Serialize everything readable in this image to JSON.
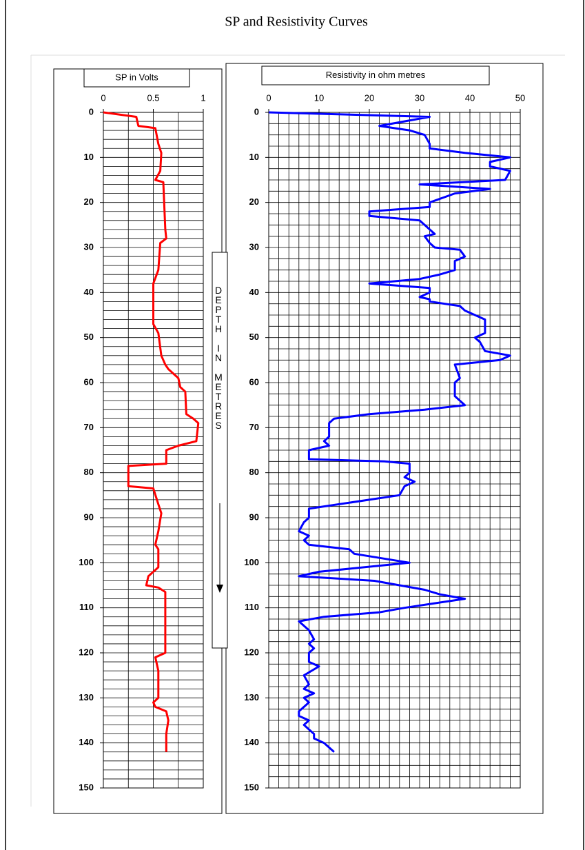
{
  "title": "SP and Resistivity Curves",
  "annotation": "DEPTH IN METRES",
  "chart_data": [
    {
      "type": "line",
      "title": "SP in Volts",
      "color": "#ff0000",
      "xlim": [
        0,
        1
      ],
      "xticks": [
        0,
        0.5,
        1
      ],
      "x_minor_step": 0.25,
      "ylim": [
        0,
        150
      ],
      "y_inverted": true,
      "yticks": [
        0,
        10,
        20,
        30,
        40,
        50,
        60,
        70,
        80,
        90,
        100,
        110,
        120,
        130,
        140,
        150
      ],
      "y_minor_step": 2,
      "grid": true,
      "y": [
        0,
        1,
        3,
        3.5,
        7,
        9,
        13,
        15,
        15.5,
        26,
        28,
        29,
        35,
        38,
        47,
        49,
        54,
        56,
        57,
        59,
        61,
        62,
        67,
        68,
        69,
        73,
        74,
        75,
        78,
        78.5,
        83,
        83.5,
        87,
        89,
        93,
        96,
        97,
        101,
        103,
        105,
        105.5,
        106.5,
        120,
        121,
        124,
        130,
        131,
        132,
        133,
        135,
        138,
        142
      ],
      "values": [
        0,
        0.33,
        0.35,
        0.52,
        0.55,
        0.58,
        0.57,
        0.52,
        0.6,
        0.62,
        0.63,
        0.57,
        0.55,
        0.5,
        0.5,
        0.55,
        0.58,
        0.62,
        0.65,
        0.75,
        0.77,
        0.82,
        0.83,
        0.9,
        0.95,
        0.93,
        0.75,
        0.63,
        0.63,
        0.25,
        0.25,
        0.5,
        0.55,
        0.58,
        0.55,
        0.52,
        0.55,
        0.55,
        0.45,
        0.43,
        0.55,
        0.62,
        0.62,
        0.52,
        0.55,
        0.55,
        0.5,
        0.52,
        0.63,
        0.65,
        0.63,
        0.63
      ]
    },
    {
      "type": "line",
      "title": "Resistivity in ohm metres",
      "color": "#0000ff",
      "xlim": [
        0,
        50
      ],
      "xticks": [
        0,
        10,
        20,
        30,
        40,
        50
      ],
      "x_minor_step": 2,
      "ylim": [
        0,
        150
      ],
      "y_inverted": true,
      "yticks": [
        0,
        10,
        20,
        30,
        40,
        50,
        60,
        70,
        80,
        90,
        100,
        110,
        120,
        130,
        140,
        150
      ],
      "y_minor_step": 2.5,
      "grid": true,
      "y": [
        0,
        1,
        3,
        4,
        5,
        7,
        8,
        9,
        10,
        11,
        12,
        13,
        15,
        16,
        17,
        18,
        20,
        21,
        22,
        23,
        24,
        27,
        27.5,
        29,
        30,
        30.5,
        32,
        33,
        35,
        36,
        37,
        38,
        39,
        40,
        41,
        41.5,
        42,
        43,
        44,
        46,
        49,
        50,
        51,
        53,
        54,
        55,
        56,
        59,
        60,
        63,
        65,
        66,
        67,
        68,
        69,
        72,
        73,
        74,
        75,
        77,
        77.5,
        78,
        80,
        81,
        82,
        83,
        85,
        86,
        88,
        90,
        91,
        93,
        94,
        95,
        96,
        97,
        98,
        100,
        102,
        103,
        104,
        106,
        107,
        108,
        109,
        110,
        111,
        112,
        113,
        115,
        117,
        118,
        119,
        120,
        122,
        123,
        125,
        127,
        128,
        129,
        130,
        131,
        133,
        134,
        135,
        136,
        137,
        138,
        139,
        140,
        141,
        142
      ],
      "values": [
        0,
        32,
        22,
        28,
        31,
        32,
        32,
        39,
        48,
        44,
        44,
        48,
        47,
        30,
        44,
        37,
        32,
        32,
        20,
        20,
        30,
        33,
        31,
        32,
        33,
        38,
        39,
        37,
        37,
        34,
        30,
        20,
        32,
        32,
        30,
        32,
        32,
        38,
        39,
        43,
        43,
        41,
        42,
        43,
        48,
        46,
        37,
        38,
        37,
        37,
        39,
        31,
        20,
        13,
        12,
        12,
        11,
        12,
        8,
        8,
        23,
        28,
        28,
        27,
        29,
        27,
        26,
        20,
        8,
        8,
        7,
        6,
        8,
        7,
        8,
        16,
        17,
        28,
        10,
        6,
        21,
        31,
        34,
        39,
        33,
        27,
        22,
        11,
        6,
        8,
        9,
        8,
        9,
        8,
        8,
        10,
        7,
        8,
        7,
        9,
        7,
        8,
        6,
        6,
        8,
        7,
        8,
        9,
        9,
        11,
        12,
        13
      ]
    }
  ]
}
